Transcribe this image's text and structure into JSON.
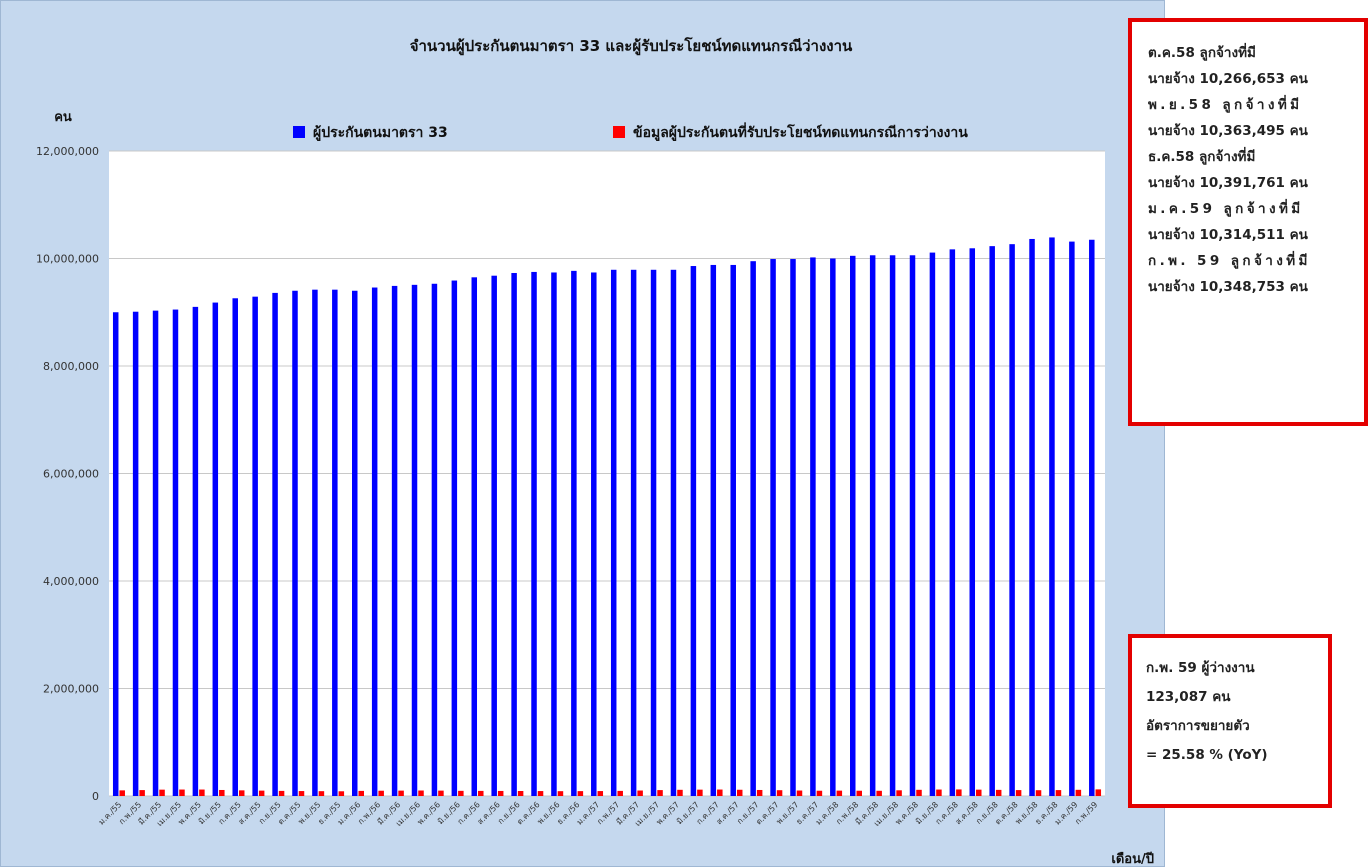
{
  "chart_data": {
    "type": "bar",
    "title": "จำนวนผู้ประกันตนมาตรา 33 และผู้รับประโยชน์ทดแทนกรณีว่างงาน",
    "ylabel": "คน",
    "xlabel": "เดือน/ปี",
    "ylim": [
      0,
      12000000
    ],
    "yticks": [
      "0",
      "2,000,000",
      "4,000,000",
      "6,000,000",
      "8,000,000",
      "10,000,000",
      "12,000,000"
    ],
    "ytick_values": [
      0,
      2000000,
      4000000,
      6000000,
      8000000,
      10000000,
      12000000
    ],
    "grid": true,
    "legend_position": "top",
    "categories": [
      "ม.ค./55",
      "ก.พ./55",
      "มี.ค./55",
      "เม.ย./55",
      "พ.ค./55",
      "มิ.ย./55",
      "ก.ค./55",
      "ส.ค./55",
      "ก.ย./55",
      "ต.ค./55",
      "พ.ย./55",
      "ธ.ค./55",
      "ม.ค./56",
      "ก.พ./56",
      "มี.ค./56",
      "เม.ย./56",
      "พ.ค./56",
      "มิ.ย./56",
      "ก.ค./56",
      "ส.ค./56",
      "ก.ย./56",
      "ต.ค./56",
      "พ.ย./56",
      "ธ.ค./56",
      "ม.ค./57",
      "ก.พ./57",
      "มี.ค./57",
      "เม.ย./57",
      "พ.ค./57",
      "มิ.ย./57",
      "ก.ค./57",
      "ส.ค./57",
      "ก.ย./57",
      "ต.ค./57",
      "พ.ย./57",
      "ธ.ค./57",
      "ม.ค./58",
      "ก.พ./58",
      "มี.ค./58",
      "เม.ย./58",
      "พ.ค./58",
      "มิ.ย./58",
      "ก.ค./58",
      "ส.ค./58",
      "ก.ย./58",
      "ต.ค./58",
      "พ.ย./58",
      "ธ.ค./58",
      "ม.ค./59",
      "ก.พ./59"
    ],
    "series": [
      {
        "name": "ผู้ประกันตนมาตรา 33",
        "color": "#0000ff",
        "values": [
          9000000,
          9010000,
          9030000,
          9050000,
          9100000,
          9180000,
          9260000,
          9290000,
          9360000,
          9400000,
          9420000,
          9420000,
          9400000,
          9460000,
          9490000,
          9510000,
          9530000,
          9590000,
          9650000,
          9680000,
          9730000,
          9750000,
          9740000,
          9770000,
          9740000,
          9790000,
          9790000,
          9790000,
          9790000,
          9860000,
          9880000,
          9880000,
          9950000,
          9990000,
          9990000,
          10020000,
          10000000,
          10050000,
          10060000,
          10060000,
          10060000,
          10110000,
          10170000,
          10190000,
          10230000,
          10266653,
          10363495,
          10391761,
          10314511,
          10348753
        ]
      },
      {
        "name": "ข้อมูลผู้ประกันตนที่รับประโยชน์ทดแทนกรณีการว่างงาน",
        "color": "#ff0000",
        "values": [
          105000,
          110000,
          118000,
          120000,
          120000,
          112000,
          105000,
          100000,
          95000,
          92000,
          90000,
          88000,
          95000,
          98000,
          100000,
          102000,
          100000,
          96000,
          95000,
          94000,
          93000,
          92000,
          90000,
          91000,
          92000,
          95000,
          102000,
          110000,
          115000,
          118000,
          120000,
          116000,
          112000,
          108000,
          102000,
          98000,
          100000,
          98000,
          97000,
          106000,
          115000,
          120000,
          122000,
          118000,
          114000,
          110000,
          108000,
          110000,
          115000,
          123087
        ]
      }
    ]
  },
  "notes": {
    "employees": [
      {
        "text": "ต.ค.58 ลูกจ้างที่มี",
        "spaced": false
      },
      {
        "text": "นายจ้าง 10,266,653 คน",
        "spaced": false
      },
      {
        "text": "พ.ย.58 ลูกจ้างที่มี",
        "spaced": true
      },
      {
        "text": "นายจ้าง 10,363,495 คน",
        "spaced": false
      },
      {
        "text": "ธ.ค.58 ลูกจ้างที่มี",
        "spaced": false
      },
      {
        "text": "นายจ้าง 10,391,761 คน",
        "spaced": false
      },
      {
        "text": "ม.ค.59 ลูกจ้างที่มี",
        "spaced": true
      },
      {
        "text": "นายจ้าง 10,314,511 คน",
        "spaced": false
      },
      {
        "text": "ก.พ. 59 ลูกจ้างที่มี",
        "spaced": true
      },
      {
        "text": "นายจ้าง 10,348,753 คน",
        "spaced": false
      }
    ],
    "unemployed": [
      "ก.พ. 59 ผู้ว่างงาน",
      "123,087 คน",
      "อัตราการขยายตัว",
      "= 25.58 % (YoY)"
    ]
  }
}
